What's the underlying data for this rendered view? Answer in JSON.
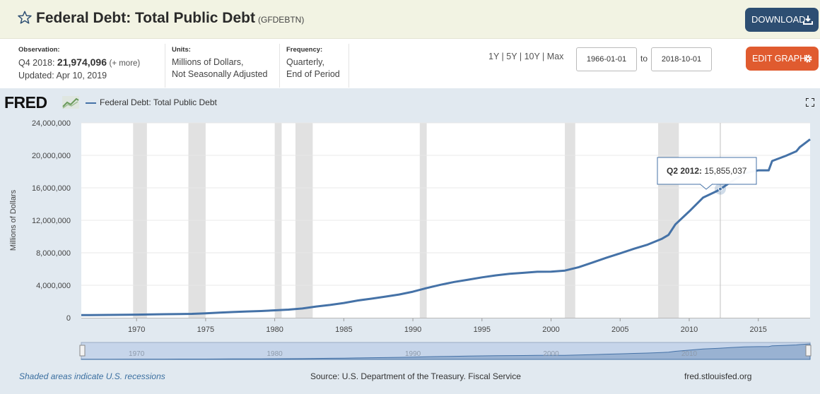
{
  "header": {
    "title": "Federal Debt: Total Public Debt",
    "series_id": "(GFDEBTN)",
    "download_label": "DOWNLOAD"
  },
  "observation": {
    "label": "Observation:",
    "period": "Q4 2018:",
    "value": "21,974,096",
    "more": "(+ more)",
    "updated": "Updated: Apr 10, 2019"
  },
  "units": {
    "label": "Units:",
    "line1": "Millions of Dollars,",
    "line2": "Not Seasonally Adjusted"
  },
  "frequency": {
    "label": "Frequency:",
    "line1": "Quarterly,",
    "line2": "End of Period"
  },
  "range_buttons": [
    "1Y",
    "5Y",
    "10Y",
    "Max"
  ],
  "date_range": {
    "start": "1966-01-01",
    "to_label": "to",
    "end": "2018-10-01"
  },
  "edit_label": "EDIT GRAPH",
  "logo_text": "FRED",
  "footer": {
    "recession_note": "Shaded areas indicate U.S. recessions",
    "source": "Source: U.S. Department of the Treasury. Fiscal Service",
    "site": "fred.stlouisfed.org"
  },
  "tooltip": {
    "period": "Q2 2012:",
    "value": "15,855,037"
  },
  "colors": {
    "line": "#4572a7",
    "recession": "#e1e1e1",
    "download": "#2d4e72",
    "edit": "#e05b2f",
    "band": "#e1e9f0"
  },
  "chart_data": {
    "type": "line",
    "title": "",
    "ylabel": "Millions of Dollars",
    "xlim": [
      1966.0,
      2018.75
    ],
    "ylim": [
      0,
      24000000
    ],
    "yticks": [
      0,
      4000000,
      8000000,
      12000000,
      16000000,
      20000000,
      24000000
    ],
    "ytick_labels": [
      "0",
      "4,000,000",
      "8,000,000",
      "12,000,000",
      "16,000,000",
      "20,000,000",
      "24,000,000"
    ],
    "xticks": [
      1970,
      1975,
      1980,
      1985,
      1990,
      1995,
      2000,
      2005,
      2010,
      2015
    ],
    "navigator_ticks": [
      1970,
      1980,
      1990,
      2000,
      2010
    ],
    "legend": "top-left",
    "series": [
      {
        "name": "Federal Debt: Total Public Debt",
        "x": [
          1966.0,
          1968.0,
          1970.0,
          1972.0,
          1974.0,
          1975.0,
          1976.0,
          1977.0,
          1978.0,
          1979.0,
          1980.0,
          1981.0,
          1982.0,
          1983.0,
          1984.0,
          1985.0,
          1986.0,
          1987.0,
          1988.0,
          1989.0,
          1990.0,
          1991.0,
          1992.0,
          1993.0,
          1994.0,
          1995.0,
          1996.0,
          1997.0,
          1998.0,
          1999.0,
          2000.0,
          2001.0,
          2002.0,
          2003.0,
          2004.0,
          2005.0,
          2006.0,
          2007.0,
          2008.0,
          2008.5,
          2009.0,
          2010.0,
          2011.0,
          2012.0,
          2012.25,
          2013.0,
          2014.0,
          2015.0,
          2015.75,
          2016.0,
          2017.0,
          2017.75,
          2018.0,
          2018.75
        ],
        "y": [
          320000,
          345000,
          380000,
          435000,
          480000,
          540000,
          630000,
          700000,
          775000,
          830000,
          910000,
          1000000,
          1140000,
          1380000,
          1570000,
          1820000,
          2120000,
          2350000,
          2600000,
          2860000,
          3210000,
          3660000,
          4060000,
          4410000,
          4690000,
          4970000,
          5220000,
          5410000,
          5530000,
          5660000,
          5670000,
          5810000,
          6230000,
          6800000,
          7380000,
          7930000,
          8500000,
          9010000,
          9700000,
          10200000,
          11500000,
          13100000,
          14790000,
          15600000,
          15855037,
          16700000,
          17800000,
          18150000,
          18150000,
          19300000,
          19950000,
          20500000,
          21000000,
          21974096
        ]
      }
    ],
    "recessions": [
      [
        1969.75,
        1970.75
      ],
      [
        1973.75,
        1975.0
      ],
      [
        1980.0,
        1980.5
      ],
      [
        1981.5,
        1982.75
      ],
      [
        1990.5,
        1991.0
      ],
      [
        2001.0,
        2001.75
      ],
      [
        2007.75,
        2009.25
      ]
    ],
    "highlight": {
      "x": 2012.25,
      "y": 15855037
    }
  }
}
